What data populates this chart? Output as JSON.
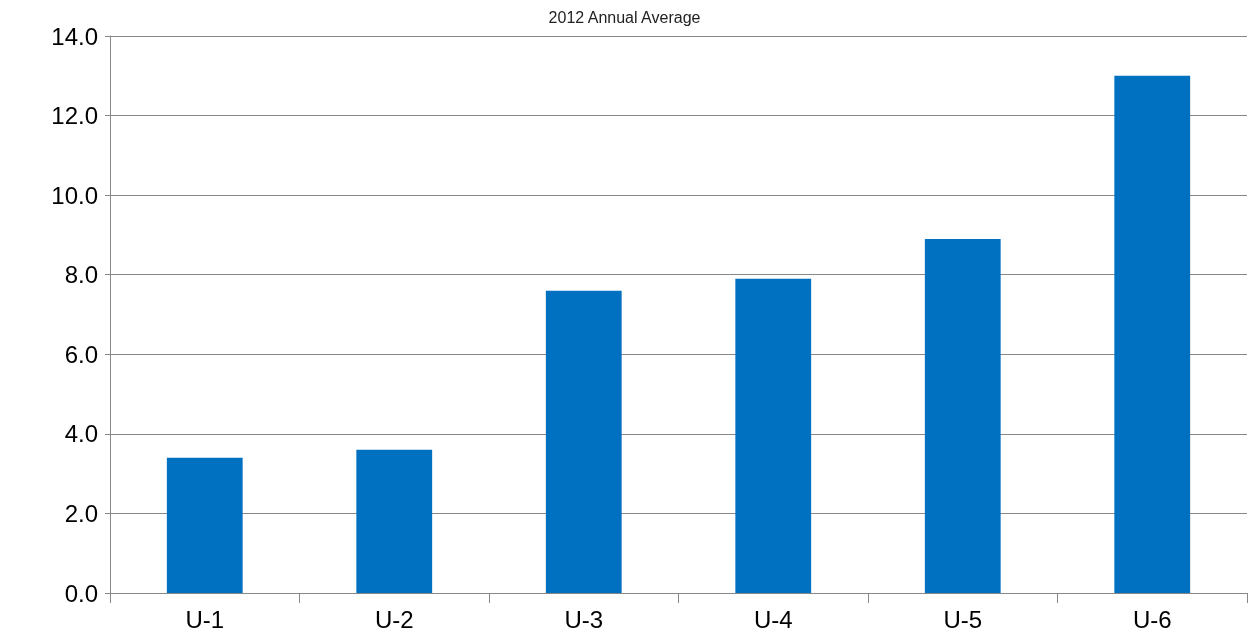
{
  "chart_data": {
    "type": "bar",
    "title": "2012 Annual Average",
    "categories": [
      "U-1",
      "U-2",
      "U-3",
      "U-4",
      "U-5",
      "U-6"
    ],
    "values": [
      3.4,
      3.6,
      7.6,
      7.9,
      8.9,
      13.0
    ],
    "color": "#0070c0",
    "ylim": [
      0,
      14
    ],
    "yticks": [
      {
        "value": 0,
        "label": "0.0"
      },
      {
        "value": 2,
        "label": "2.0"
      },
      {
        "value": 4,
        "label": "4.0"
      },
      {
        "value": 6,
        "label": "6.0"
      },
      {
        "value": 8,
        "label": "8.0"
      },
      {
        "value": 10,
        "label": "10.0"
      },
      {
        "value": 12,
        "label": "12.0"
      },
      {
        "value": 14,
        "label": "14.0"
      }
    ],
    "grid": "y"
  }
}
